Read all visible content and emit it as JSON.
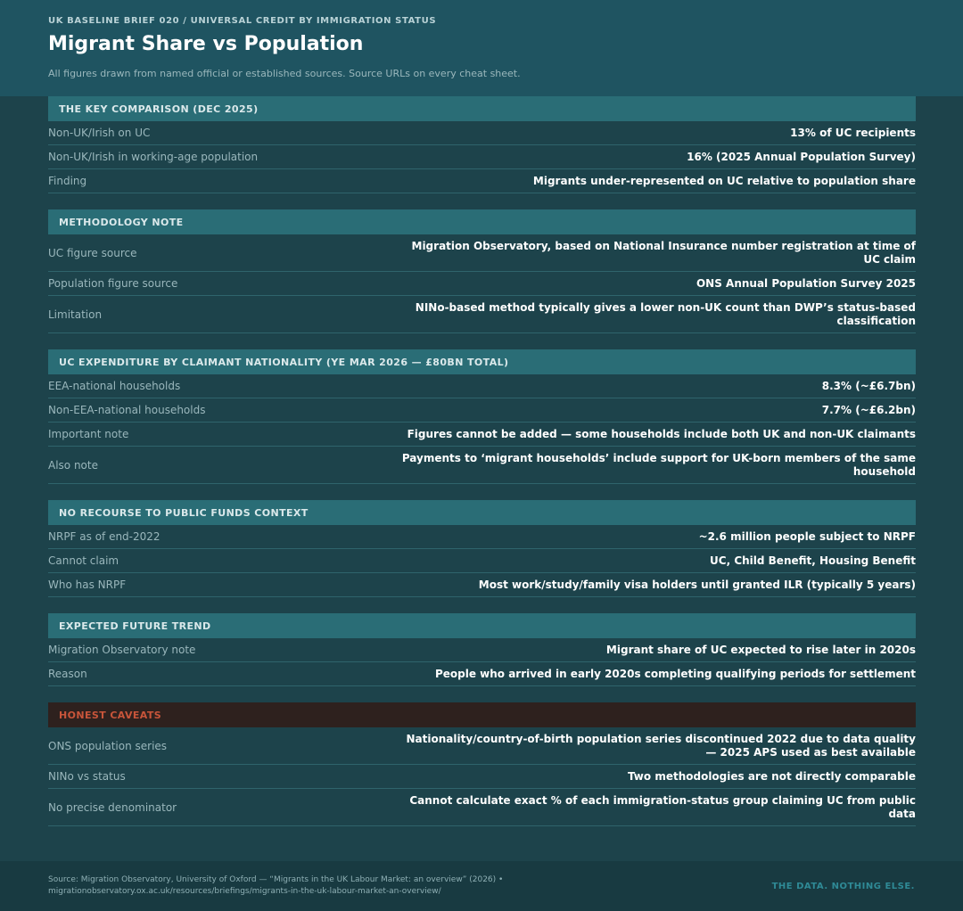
{
  "header": {
    "kicker": "UK BASELINE BRIEF 020 / UNIVERSAL CREDIT BY IMMIGRATION STATUS",
    "title": "Migrant Share vs Population",
    "subtitle": "All figures drawn from named official or established sources. Source URLs on every cheat sheet."
  },
  "sections": [
    {
      "heading": "THE KEY COMPARISON (DEC 2025)",
      "rows": [
        {
          "label": "Non-UK/Irish on UC",
          "value": "13% of UC recipients"
        },
        {
          "label": "Non-UK/Irish in working-age population",
          "value": "16% (2025 Annual Population Survey)"
        },
        {
          "label": "Finding",
          "value": "Migrants under-represented on UC relative to population share"
        }
      ]
    },
    {
      "heading": "METHODOLOGY NOTE",
      "rows": [
        {
          "label": "UC figure source",
          "value": "Migration Observatory, based on National Insurance number registration at time of UC claim"
        },
        {
          "label": "Population figure source",
          "value": "ONS Annual Population Survey 2025"
        },
        {
          "label": "Limitation",
          "value": "NINo-based method typically gives a lower non-UK count than DWP’s status-based classification"
        }
      ]
    },
    {
      "heading": "UC EXPENDITURE BY CLAIMANT NATIONALITY (YE MAR 2026 — £80BN TOTAL)",
      "rows": [
        {
          "label": "EEA-national households",
          "value": "8.3% (~£6.7bn)"
        },
        {
          "label": "Non-EEA-national households",
          "value": "7.7% (~£6.2bn)"
        },
        {
          "label": "Important note",
          "value": "Figures cannot be added — some households include both UK and non-UK claimants"
        },
        {
          "label": "Also note",
          "value": "Payments to ‘migrant households’ include support for UK-born members of the same household"
        }
      ]
    },
    {
      "heading": "NO RECOURSE TO PUBLIC FUNDS CONTEXT",
      "rows": [
        {
          "label": "NRPF as of end-2022",
          "value": "~2.6 million people subject to NRPF"
        },
        {
          "label": "Cannot claim",
          "value": "UC, Child Benefit, Housing Benefit"
        },
        {
          "label": "Who has NRPF",
          "value": "Most work/study/family visa holders until granted ILR (typically 5 years)"
        }
      ]
    },
    {
      "heading": "EXPECTED FUTURE TREND",
      "rows": [
        {
          "label": "Migration Observatory note",
          "value": "Migrant share of UC expected to rise later in 2020s"
        },
        {
          "label": "Reason",
          "value": "People who arrived in early 2020s completing qualifying periods for settlement"
        }
      ]
    },
    {
      "heading": "HONEST CAVEATS",
      "caveat": true,
      "rows": [
        {
          "label": "ONS population series",
          "value": "Nationality/country-of-birth population series discontinued 2022 due to data quality — 2025 APS used as best available"
        },
        {
          "label": "NINo vs status",
          "value": "Two methodologies are not directly comparable"
        },
        {
          "label": "No precise denominator",
          "value": "Cannot calculate exact % of each immigration-status group claiming UC from public data"
        }
      ]
    }
  ],
  "footer": {
    "source": "Source: Migration Observatory, University of Oxford — “Migrants in the UK Labour Market: an overview” (2026) • migrationobservatory.ox.ac.uk/resources/briefings/migrants-in-the-uk-labour-market-an-overview/",
    "tagline": "THE DATA. NOTHING ELSE."
  },
  "colors": {
    "background": "#1d434b",
    "header": "#1f5461",
    "section_head": "#2a6d76",
    "caveat_head": "#2e211e",
    "caveat_text": "#c8553a",
    "accent": "#2f8a96"
  }
}
